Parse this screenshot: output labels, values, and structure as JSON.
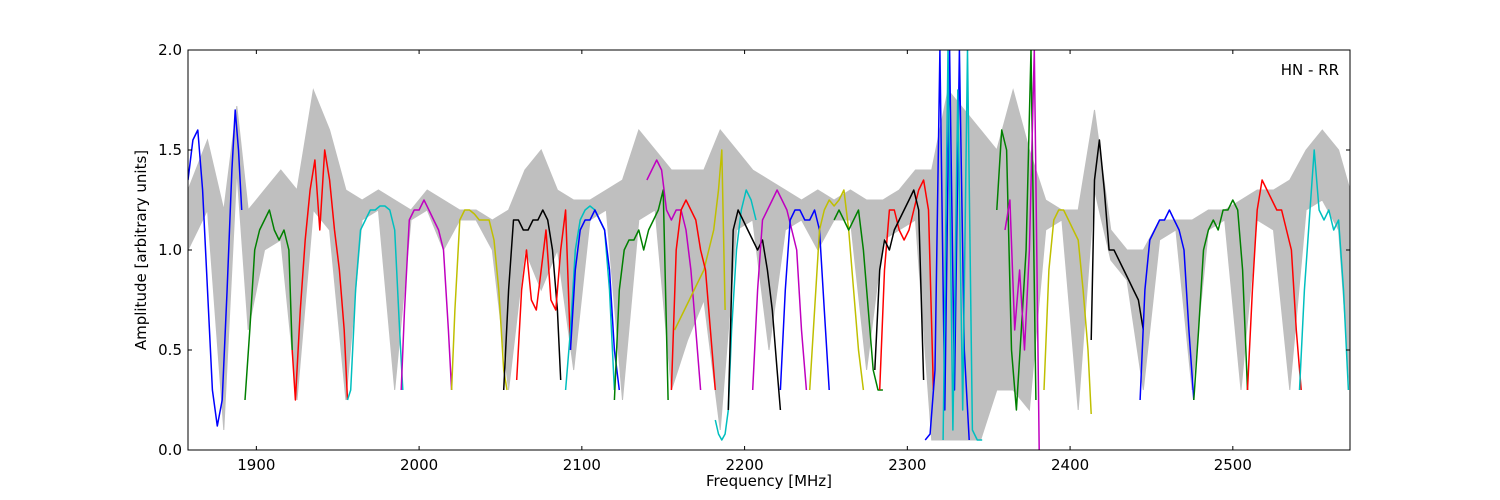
{
  "chart_data": {
    "type": "line",
    "annotation": "HN - RR",
    "xlabel": "Frequency [MHz]",
    "ylabel": "Amplitude [arbitrary units]",
    "xlim": [
      1858,
      2572
    ],
    "ylim": [
      0.0,
      2.0
    ],
    "xticks": [
      1900,
      2000,
      2100,
      2200,
      2300,
      2400,
      2500
    ],
    "xtick_labels": [
      "1900",
      "2000",
      "2100",
      "2200",
      "2300",
      "2400",
      "2500"
    ],
    "yticks": [
      0.0,
      0.5,
      1.0,
      1.5,
      2.0
    ],
    "ytick_labels": [
      "0.0",
      "0.5",
      "1.0",
      "1.5",
      "2.0"
    ],
    "grid": false,
    "legend": "none",
    "background_envelope": {
      "color": "#bfbfbf",
      "x": [
        1858,
        1870,
        1880,
        1888,
        1895,
        1905,
        1915,
        1925,
        1935,
        1945,
        1955,
        1965,
        1975,
        1985,
        1995,
        2005,
        2015,
        2025,
        2035,
        2045,
        2055,
        2065,
        2075,
        2085,
        2095,
        2105,
        2115,
        2125,
        2135,
        2145,
        2155,
        2165,
        2175,
        2185,
        2195,
        2205,
        2215,
        2225,
        2235,
        2245,
        2255,
        2265,
        2275,
        2285,
        2295,
        2305,
        2315,
        2325,
        2335,
        2345,
        2355,
        2365,
        2375,
        2385,
        2395,
        2405,
        2415,
        2425,
        2435,
        2445,
        2455,
        2465,
        2475,
        2485,
        2495,
        2505,
        2515,
        2525,
        2535,
        2545,
        2555,
        2565,
        2572
      ],
      "upper": [
        1.3,
        1.55,
        1.2,
        1.72,
        1.2,
        1.3,
        1.4,
        1.3,
        1.8,
        1.6,
        1.3,
        1.25,
        1.3,
        1.25,
        1.2,
        1.3,
        1.25,
        1.2,
        1.2,
        1.15,
        1.2,
        1.4,
        1.5,
        1.3,
        1.25,
        1.25,
        1.3,
        1.35,
        1.6,
        1.5,
        1.4,
        1.4,
        1.4,
        1.6,
        1.5,
        1.4,
        1.35,
        1.3,
        1.25,
        1.3,
        1.25,
        1.3,
        1.25,
        1.25,
        1.3,
        1.4,
        1.4,
        1.8,
        1.7,
        1.6,
        1.5,
        1.8,
        1.5,
        1.25,
        1.2,
        1.2,
        1.7,
        1.1,
        1.0,
        1.0,
        1.15,
        1.15,
        1.15,
        1.2,
        1.2,
        1.25,
        1.3,
        1.3,
        1.35,
        1.5,
        1.6,
        1.5,
        1.3
      ],
      "lower": [
        1.0,
        1.2,
        0.1,
        1.4,
        0.6,
        1.0,
        1.05,
        0.25,
        1.2,
        1.1,
        0.25,
        1.15,
        1.2,
        0.3,
        1.15,
        1.2,
        1.0,
        1.15,
        1.15,
        1.0,
        0.3,
        1.0,
        0.8,
        1.0,
        0.4,
        1.15,
        1.2,
        0.25,
        1.15,
        1.2,
        0.3,
        0.55,
        0.75,
        0.1,
        1.1,
        1.15,
        0.5,
        1.1,
        1.15,
        1.0,
        1.15,
        1.15,
        0.4,
        1.05,
        1.1,
        1.15,
        0.05,
        0.05,
        0.05,
        0.05,
        0.3,
        0.3,
        0.2,
        1.1,
        1.15,
        0.2,
        1.3,
        0.95,
        0.85,
        0.3,
        1.05,
        1.1,
        0.3,
        1.1,
        1.15,
        0.3,
        1.15,
        1.1,
        0.3,
        1.2,
        1.25,
        1.1,
        0.3
      ]
    },
    "series": [
      {
        "color": "#0000ff",
        "x": [
          1858,
          1861,
          1864,
          1867,
          1870,
          1873,
          1876,
          1879,
          1882,
          1885,
          1887,
          1889,
          1891
        ],
        "y": [
          1.35,
          1.55,
          1.6,
          1.3,
          0.8,
          0.3,
          0.12,
          0.25,
          0.8,
          1.4,
          1.7,
          1.5,
          1.2
        ]
      },
      {
        "color": "#008000",
        "x": [
          1893,
          1896,
          1899,
          1902,
          1905,
          1908,
          1911,
          1914,
          1917,
          1920,
          1922
        ],
        "y": [
          0.25,
          0.6,
          1.0,
          1.1,
          1.15,
          1.2,
          1.1,
          1.05,
          1.1,
          1.0,
          0.5
        ]
      },
      {
        "color": "#ff0000",
        "x": [
          1922,
          1924,
          1927,
          1930,
          1933,
          1936,
          1939,
          1942,
          1945,
          1948,
          1951,
          1954,
          1956
        ],
        "y": [
          0.5,
          0.25,
          0.7,
          1.05,
          1.3,
          1.45,
          1.1,
          1.5,
          1.35,
          1.1,
          0.9,
          0.6,
          0.25
        ]
      },
      {
        "color": "#00bfbf",
        "x": [
          1956,
          1958,
          1961,
          1964,
          1967,
          1970,
          1973,
          1976,
          1979,
          1982,
          1985,
          1988,
          1990
        ],
        "y": [
          0.25,
          0.3,
          0.8,
          1.1,
          1.15,
          1.2,
          1.2,
          1.22,
          1.22,
          1.2,
          1.1,
          0.6,
          0.3
        ]
      },
      {
        "color": "#bf00bf",
        "x": [
          1989,
          1991,
          1994,
          1997,
          2000,
          2003,
          2006,
          2009,
          2012,
          2015,
          2018,
          2020
        ],
        "y": [
          0.3,
          0.7,
          1.15,
          1.2,
          1.2,
          1.25,
          1.2,
          1.15,
          1.1,
          1.0,
          0.6,
          0.3
        ]
      },
      {
        "color": "#bfbf00",
        "x": [
          2020,
          2022,
          2025,
          2028,
          2031,
          2034,
          2037,
          2040,
          2043,
          2046,
          2049,
          2052,
          2054
        ],
        "y": [
          0.3,
          0.7,
          1.15,
          1.2,
          1.2,
          1.18,
          1.15,
          1.15,
          1.15,
          1.05,
          0.8,
          0.4,
          0.3
        ]
      },
      {
        "color": "#000000",
        "x": [
          2052,
          2055,
          2058,
          2061,
          2064,
          2067,
          2070,
          2073,
          2076,
          2079,
          2082,
          2085,
          2087
        ],
        "y": [
          0.3,
          0.8,
          1.15,
          1.15,
          1.1,
          1.1,
          1.15,
          1.15,
          1.2,
          1.15,
          1.0,
          0.7,
          0.35
        ]
      },
      {
        "color": "#ff0000",
        "x": [
          2060,
          2063,
          2066,
          2069,
          2072,
          2075,
          2078,
          2081,
          2084,
          2087,
          2090,
          2093
        ],
        "y": [
          0.35,
          0.8,
          1.0,
          0.75,
          0.7,
          0.9,
          1.1,
          0.75,
          0.7,
          1.0,
          1.2,
          0.5
        ]
      },
      {
        "color": "#00bfbf",
        "x": [
          2090,
          2093,
          2096,
          2099,
          2102,
          2105,
          2108,
          2111,
          2114,
          2117,
          2120
        ],
        "y": [
          0.3,
          0.6,
          1.0,
          1.15,
          1.2,
          1.22,
          1.2,
          1.15,
          1.1,
          0.8,
          0.3
        ]
      },
      {
        "color": "#0000ff",
        "x": [
          2093,
          2096,
          2099,
          2102,
          2105,
          2108,
          2111,
          2114,
          2117,
          2120,
          2123
        ],
        "y": [
          0.5,
          0.9,
          1.1,
          1.15,
          1.15,
          1.2,
          1.15,
          1.1,
          0.9,
          0.5,
          0.3
        ]
      },
      {
        "color": "#008000",
        "x": [
          2120,
          2123,
          2126,
          2129,
          2132,
          2135,
          2138,
          2141,
          2144,
          2147,
          2150,
          2153
        ],
        "y": [
          0.25,
          0.8,
          1.0,
          1.05,
          1.05,
          1.1,
          1.0,
          1.1,
          1.15,
          1.2,
          1.3,
          0.25
        ]
      },
      {
        "color": "#bf00bf",
        "x": [
          2140,
          2143,
          2146,
          2149,
          2152,
          2155,
          2158,
          2161,
          2164,
          2167,
          2170,
          2173
        ],
        "y": [
          1.35,
          1.4,
          1.45,
          1.4,
          1.2,
          1.15,
          1.2,
          1.2,
          1.1,
          0.9,
          0.6,
          0.3
        ]
      },
      {
        "color": "#bfbf00",
        "x": [
          2157,
          2160,
          2163,
          2166,
          2169,
          2172,
          2175,
          2178,
          2181,
          2184,
          2186,
          2188
        ],
        "y": [
          0.6,
          0.65,
          0.7,
          0.75,
          0.8,
          0.85,
          0.9,
          1.0,
          1.1,
          1.3,
          1.5,
          0.7
        ]
      },
      {
        "color": "#ff0000",
        "x": [
          2155,
          2158,
          2161,
          2164,
          2167,
          2170,
          2173,
          2176,
          2179,
          2182
        ],
        "y": [
          0.3,
          1.0,
          1.2,
          1.25,
          1.2,
          1.15,
          1.0,
          0.9,
          0.6,
          0.3
        ]
      },
      {
        "color": "#00bfbf",
        "x": [
          2182,
          2184,
          2186,
          2188,
          2190,
          2192,
          2195,
          2198,
          2201,
          2204,
          2207
        ],
        "y": [
          0.15,
          0.08,
          0.05,
          0.08,
          0.2,
          0.6,
          1.0,
          1.2,
          1.3,
          1.25,
          1.15
        ]
      },
      {
        "color": "#000000",
        "x": [
          2190,
          2193,
          2196,
          2199,
          2202,
          2205,
          2208,
          2211,
          2214,
          2217,
          2220,
          2222
        ],
        "y": [
          0.2,
          1.1,
          1.2,
          1.15,
          1.1,
          1.05,
          1.0,
          1.05,
          0.9,
          0.7,
          0.4,
          0.2
        ]
      },
      {
        "color": "#bf00bf",
        "x": [
          2205,
          2208,
          2211,
          2214,
          2217,
          2220,
          2223,
          2226,
          2229,
          2232,
          2235,
          2238
        ],
        "y": [
          0.3,
          0.8,
          1.15,
          1.2,
          1.25,
          1.3,
          1.25,
          1.2,
          1.1,
          1.0,
          0.6,
          0.3
        ]
      },
      {
        "color": "#0000ff",
        "x": [
          2222,
          2225,
          2228,
          2231,
          2234,
          2237,
          2240,
          2243,
          2246,
          2249,
          2252
        ],
        "y": [
          0.3,
          0.8,
          1.15,
          1.2,
          1.2,
          1.15,
          1.15,
          1.2,
          1.1,
          0.7,
          0.3
        ]
      },
      {
        "color": "#bfbf00",
        "x": [
          2240,
          2243,
          2246,
          2249,
          2252,
          2255,
          2258,
          2261,
          2264,
          2267,
          2270,
          2273
        ],
        "y": [
          0.3,
          0.7,
          1.1,
          1.2,
          1.25,
          1.22,
          1.25,
          1.3,
          1.1,
          0.8,
          0.5,
          0.3
        ]
      },
      {
        "color": "#008000",
        "x": [
          2255,
          2258,
          2261,
          2264,
          2267,
          2270,
          2273,
          2276,
          2279,
          2282,
          2285
        ],
        "y": [
          1.15,
          1.2,
          1.15,
          1.1,
          1.15,
          1.2,
          1.0,
          0.7,
          0.4,
          0.3,
          0.3
        ]
      },
      {
        "color": "#ff0000",
        "x": [
          2283,
          2286,
          2289,
          2292,
          2295,
          2298,
          2301,
          2304,
          2307,
          2310,
          2313,
          2316
        ],
        "y": [
          0.3,
          0.9,
          1.2,
          1.2,
          1.1,
          1.05,
          1.1,
          1.2,
          1.3,
          1.35,
          1.2,
          0.3
        ]
      },
      {
        "color": "#000000",
        "x": [
          2280,
          2283,
          2286,
          2289,
          2292,
          2295,
          2298,
          2301,
          2304,
          2307,
          2310
        ],
        "y": [
          0.4,
          0.9,
          1.05,
          1.0,
          1.1,
          1.15,
          1.2,
          1.25,
          1.3,
          1.2,
          0.35
        ]
      },
      {
        "color": "#0000ff",
        "x": [
          2311,
          2314,
          2317,
          2320,
          2323,
          2326,
          2329,
          2332,
          2335,
          2338
        ],
        "y": [
          0.05,
          0.08,
          0.4,
          2.0,
          0.2,
          2.0,
          0.3,
          2.0,
          0.5,
          0.05
        ]
      },
      {
        "color": "#00bfbf",
        "x": [
          2322,
          2325,
          2328,
          2331,
          2334,
          2337,
          2340,
          2343,
          2346
        ],
        "y": [
          0.05,
          2.0,
          0.1,
          1.8,
          0.2,
          2.0,
          0.1,
          0.05,
          0.05
        ]
      },
      {
        "color": "#008000",
        "x": [
          2355,
          2358,
          2361,
          2364,
          2367,
          2370,
          2373,
          2376,
          2379
        ],
        "y": [
          1.2,
          1.6,
          1.5,
          0.5,
          0.2,
          0.6,
          1.0,
          2.0,
          0.25
        ]
      },
      {
        "color": "#bf00bf",
        "x": [
          2360,
          2363,
          2366,
          2369,
          2372,
          2375,
          2378,
          2381
        ],
        "y": [
          1.1,
          1.25,
          0.6,
          0.9,
          0.5,
          1.0,
          2.0,
          0.0
        ]
      },
      {
        "color": "#bfbf00",
        "x": [
          2384,
          2387,
          2390,
          2393,
          2396,
          2399,
          2402,
          2405,
          2408,
          2411,
          2413
        ],
        "y": [
          0.3,
          0.9,
          1.15,
          1.2,
          1.2,
          1.15,
          1.1,
          1.05,
          0.8,
          0.5,
          0.18
        ]
      },
      {
        "color": "#000000",
        "x": [
          2413,
          2415,
          2418,
          2421,
          2424,
          2427,
          2430,
          2433,
          2436,
          2439,
          2442,
          2445
        ],
        "y": [
          0.55,
          1.35,
          1.55,
          1.3,
          1.0,
          1.0,
          0.95,
          0.9,
          0.85,
          0.8,
          0.75,
          0.6
        ]
      },
      {
        "color": "#0000ff",
        "x": [
          2443,
          2446,
          2449,
          2452,
          2455,
          2458,
          2461,
          2464,
          2467,
          2470,
          2473,
          2476
        ],
        "y": [
          0.25,
          0.8,
          1.05,
          1.1,
          1.15,
          1.15,
          1.2,
          1.15,
          1.1,
          1.0,
          0.6,
          0.25
        ]
      },
      {
        "color": "#008000",
        "x": [
          2476,
          2479,
          2482,
          2485,
          2488,
          2491,
          2494,
          2497,
          2500,
          2503,
          2506,
          2509
        ],
        "y": [
          0.25,
          0.6,
          1.0,
          1.1,
          1.15,
          1.1,
          1.2,
          1.2,
          1.25,
          1.2,
          0.9,
          0.3
        ]
      },
      {
        "color": "#ff0000",
        "x": [
          2509,
          2512,
          2515,
          2518,
          2521,
          2524,
          2527,
          2530,
          2533,
          2536,
          2539,
          2542
        ],
        "y": [
          0.3,
          0.8,
          1.2,
          1.35,
          1.3,
          1.25,
          1.2,
          1.2,
          1.1,
          1.0,
          0.6,
          0.3
        ]
      },
      {
        "color": "#00bfbf",
        "x": [
          2541,
          2544,
          2547,
          2550,
          2553,
          2556,
          2559,
          2562,
          2565,
          2568,
          2571
        ],
        "y": [
          0.3,
          0.8,
          1.15,
          1.5,
          1.2,
          1.15,
          1.2,
          1.1,
          1.15,
          0.8,
          0.3
        ]
      }
    ]
  }
}
